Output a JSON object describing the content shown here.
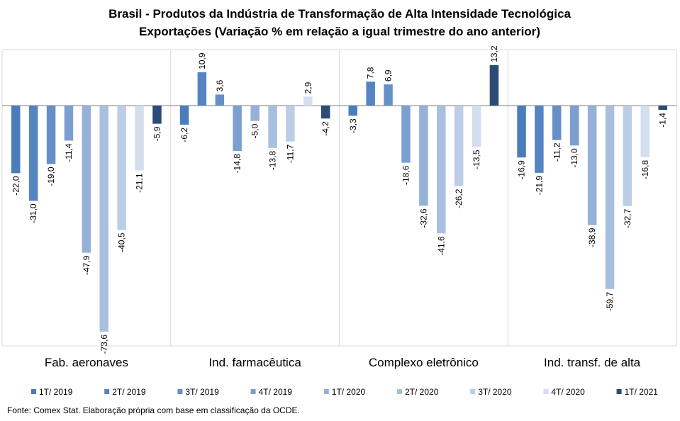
{
  "chart_data": {
    "type": "bar",
    "title": "Brasil - Produtos da Indústria de Transformação  de Alta Intensidade Tecnológica",
    "subtitle": "Exportações (Variação % em relação a igual trimestre do ano anterior)",
    "categories": [
      "Fab. aeronaves",
      "Ind. farmacêutica",
      "Complexo eletrônico",
      "Ind. transf. de alta"
    ],
    "series": [
      {
        "name": "1T/ 2019",
        "color": "#4a7ebb",
        "values": [
          -22.0,
          -6.2,
          -3.3,
          -16.9
        ],
        "labels": [
          "-22,0",
          "-6,2",
          "-3,3",
          "-16,9"
        ]
      },
      {
        "name": "2T/ 2019",
        "color": "#5585c1",
        "values": [
          -31.0,
          10.9,
          7.8,
          -21.9
        ],
        "labels": [
          "-31,0",
          "10,9",
          "7,8",
          "-21,9"
        ]
      },
      {
        "name": "3T/ 2019",
        "color": "#6590c7",
        "values": [
          -19.0,
          3.6,
          6.9,
          -11.2
        ],
        "labels": [
          "-19,0",
          "3,6",
          "6,9",
          "-11,2"
        ]
      },
      {
        "name": "4T/ 2019",
        "color": "#7c9fcf",
        "values": [
          -11.4,
          -14.8,
          -18.6,
          -13.0
        ],
        "labels": [
          "-11,4",
          "-14,8",
          "-18,6",
          "-13,0"
        ]
      },
      {
        "name": "1T/ 2020",
        "color": "#95b1d8",
        "values": [
          -47.9,
          -5.0,
          -32.6,
          -38.9
        ],
        "labels": [
          "-47,9",
          "-5,0",
          "-32,6",
          "-38,9"
        ]
      },
      {
        "name": "2T/ 2020",
        "color": "#a9bfdf",
        "values": [
          -73.6,
          -13.8,
          -41.6,
          -59.7
        ],
        "labels": [
          "-73,6",
          "-13,8",
          "-41,6",
          "-59,7"
        ]
      },
      {
        "name": "3T/ 2020",
        "color": "#bccde6",
        "values": [
          -40.5,
          -11.7,
          -26.2,
          -32.7
        ],
        "labels": [
          "-40,5",
          "-11,7",
          "-26,2",
          "-32,7"
        ]
      },
      {
        "name": "4T/ 2020",
        "color": "#d3deee",
        "values": [
          -21.1,
          2.9,
          -13.5,
          -16.8
        ],
        "labels": [
          "-21,1",
          "2,9",
          "-13,5",
          "-16,8"
        ]
      },
      {
        "name": "1T/ 2021",
        "color": "#2c4b77",
        "values": [
          -5.9,
          -4.2,
          13.2,
          -1.4
        ],
        "labels": [
          "-5,9",
          "-4,2",
          "13,2",
          "-1,4"
        ]
      }
    ],
    "ylim": [
      -78,
      20
    ],
    "grid": false,
    "legend_position": "bottom",
    "source": "Fonte: Comex Stat. Elaboração própria com base em classificação da OCDE."
  }
}
